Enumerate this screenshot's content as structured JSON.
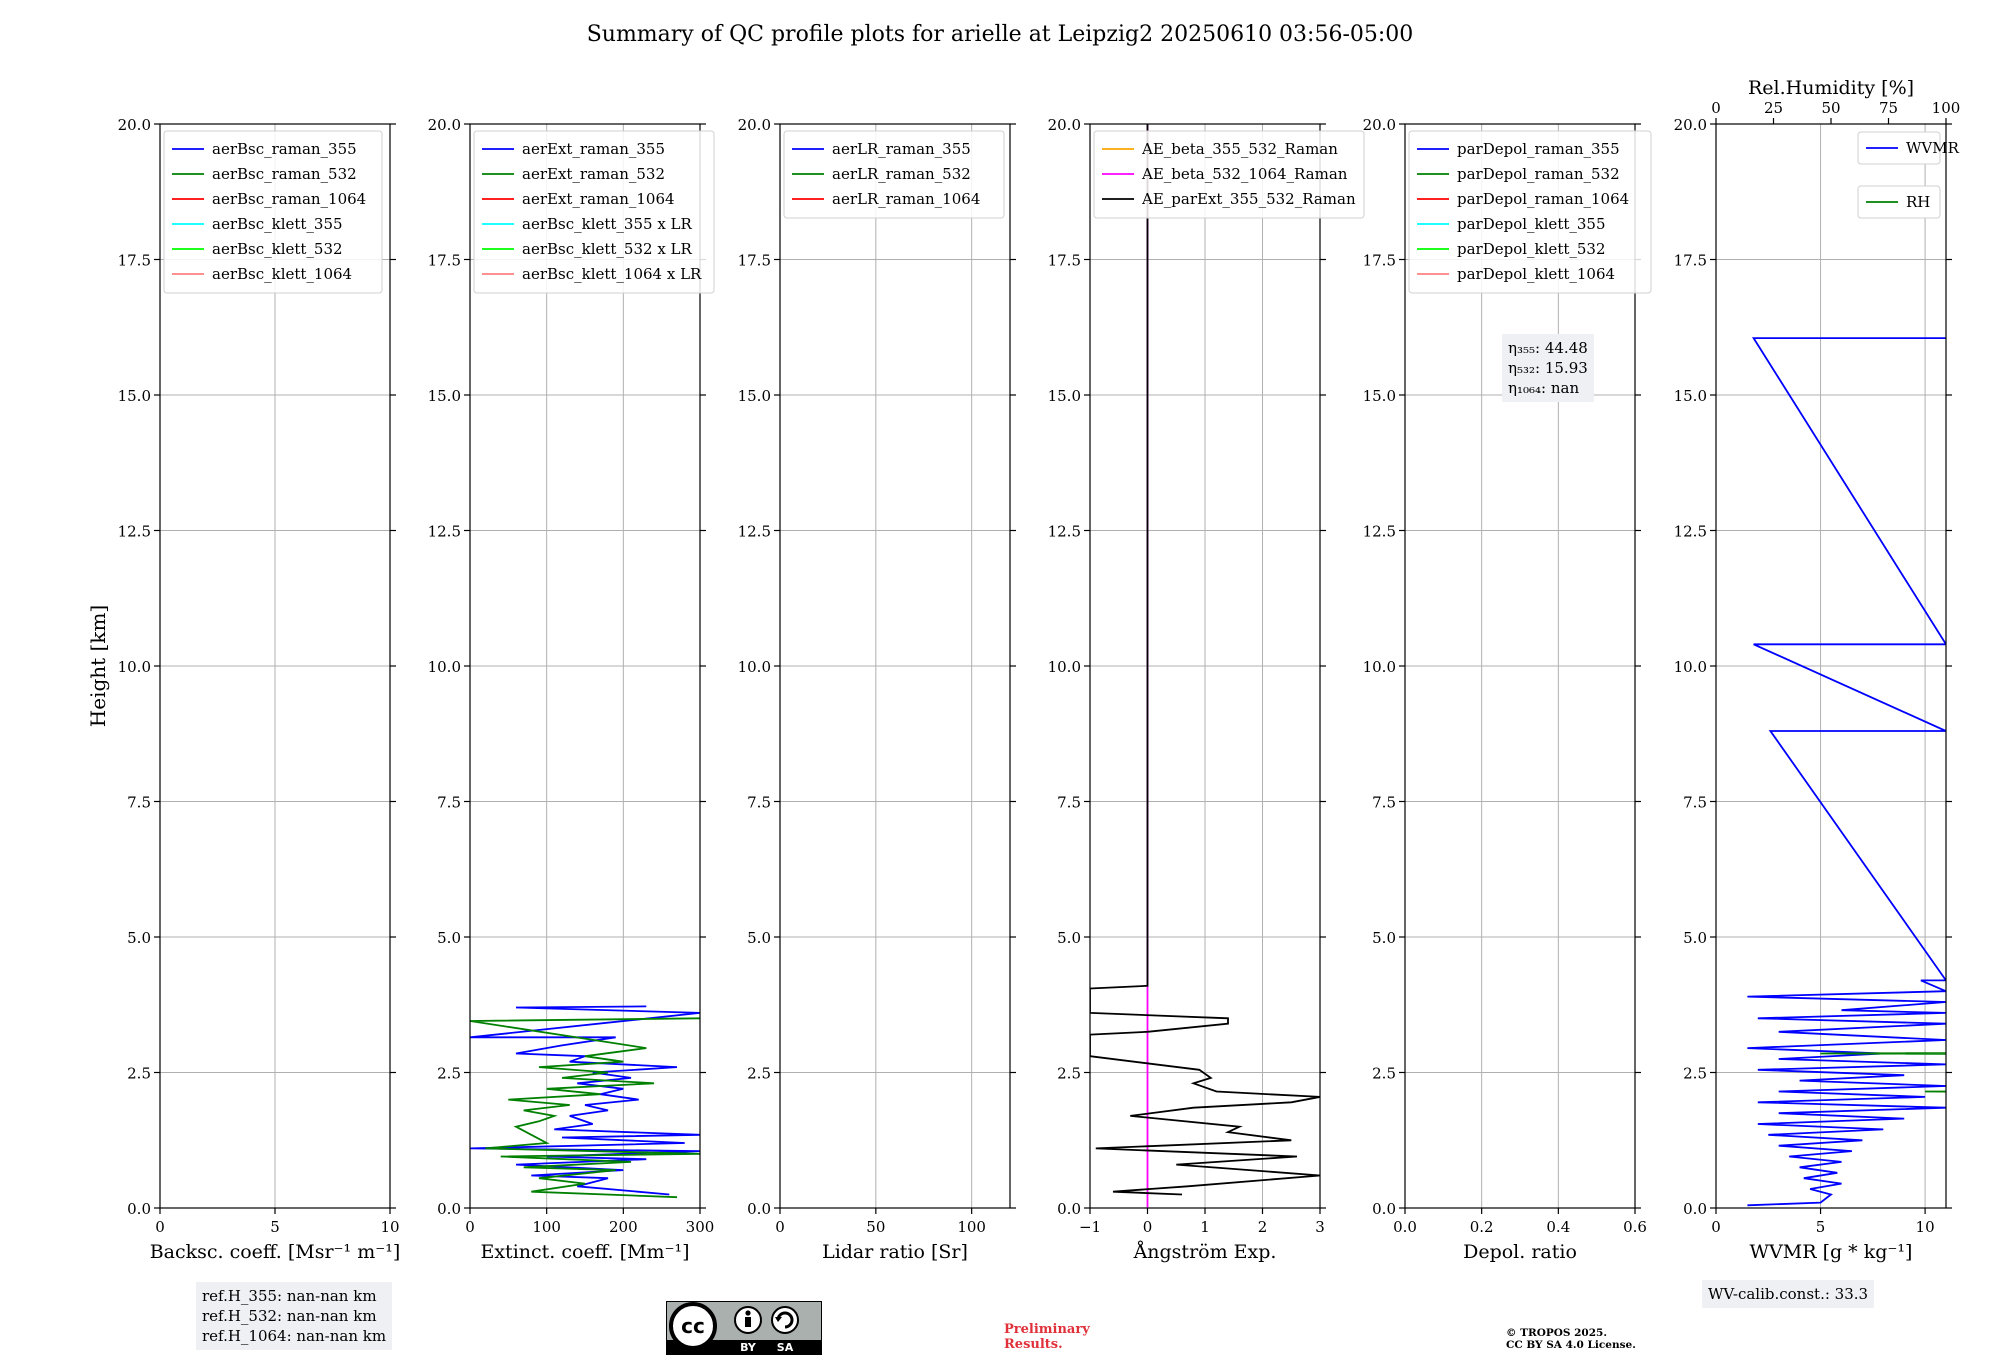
{
  "title": "Summary of QC profile plots for arielle at Leipzig2 20250610 03:56-05:00",
  "y_axis_label": "Height [km]",
  "colors": {
    "blue": "#0000ff",
    "green": "#008000",
    "red": "#ff0000",
    "cyan": "#00ffff",
    "lime": "#00ff00",
    "pink": "#ff8080",
    "orange": "#ffa500",
    "magenta": "#ff00ff",
    "black": "#000000",
    "grid": "#b0b0b0",
    "infobox_bg": "#eef0f3",
    "preliminary": "#e0303a"
  },
  "chart_data": [
    {
      "type": "line",
      "id": "backscatter",
      "xlabel": "Backsc. coeff. [Msr⁻¹ m⁻¹]",
      "xlim": [
        0,
        10
      ],
      "xticks": [
        0,
        5,
        10
      ],
      "xtick_labels": [
        "0",
        "5",
        "10"
      ],
      "ylim": [
        0,
        20
      ],
      "yticks": [
        0,
        2.5,
        5,
        7.5,
        10,
        12.5,
        15,
        17.5,
        20
      ],
      "ytick_labels": [
        "0.0",
        "2.5",
        "5.0",
        "7.5",
        "10.0",
        "12.5",
        "15.0",
        "17.5",
        "20.0"
      ],
      "grid": true,
      "legend_position": "top-left",
      "series": [
        {
          "name": "aerBsc_raman_355",
          "color": "blue",
          "points": []
        },
        {
          "name": "aerBsc_raman_532",
          "color": "green",
          "points": []
        },
        {
          "name": "aerBsc_raman_1064",
          "color": "red",
          "points": []
        },
        {
          "name": "aerBsc_klett_355",
          "color": "cyan",
          "points": []
        },
        {
          "name": "aerBsc_klett_532",
          "color": "lime",
          "points": []
        },
        {
          "name": "aerBsc_klett_1064",
          "color": "pink",
          "points": []
        }
      ]
    },
    {
      "type": "line",
      "id": "extinction",
      "xlabel": "Extinct. coeff. [Mm⁻¹]",
      "xlim": [
        0,
        300
      ],
      "xticks": [
        0,
        100,
        200,
        300
      ],
      "xtick_labels": [
        "0",
        "100",
        "200",
        "300"
      ],
      "ylim": [
        0,
        20
      ],
      "yticks": [
        0,
        2.5,
        5,
        7.5,
        10,
        12.5,
        15,
        17.5,
        20
      ],
      "ytick_labels": [
        "0.0",
        "2.5",
        "5.0",
        "7.5",
        "10.0",
        "12.5",
        "15.0",
        "17.5",
        "20.0"
      ],
      "grid": true,
      "legend_position": "top-left",
      "series": [
        {
          "name": "aerExt_raman_355",
          "color": "blue",
          "points": [
            [
              260,
              0.25
            ],
            [
              140,
              0.4
            ],
            [
              180,
              0.55
            ],
            [
              80,
              0.6
            ],
            [
              200,
              0.7
            ],
            [
              60,
              0.8
            ],
            [
              230,
              0.9
            ],
            [
              100,
              0.95
            ],
            [
              300,
              1.05
            ],
            [
              0,
              1.1
            ],
            [
              280,
              1.2
            ],
            [
              120,
              1.3
            ],
            [
              300,
              1.35
            ],
            [
              110,
              1.45
            ],
            [
              160,
              1.55
            ],
            [
              130,
              1.7
            ],
            [
              180,
              1.8
            ],
            [
              150,
              1.9
            ],
            [
              220,
              2.0
            ],
            [
              170,
              2.1
            ],
            [
              200,
              2.2
            ],
            [
              140,
              2.3
            ],
            [
              210,
              2.4
            ],
            [
              160,
              2.5
            ],
            [
              270,
              2.6
            ],
            [
              130,
              2.7
            ],
            [
              150,
              2.8
            ],
            [
              60,
              2.85
            ],
            [
              120,
              3.0
            ],
            [
              190,
              3.15
            ],
            [
              0,
              3.15
            ],
            [
              300,
              3.6
            ],
            [
              60,
              3.7
            ],
            [
              230,
              3.72
            ]
          ]
        },
        {
          "name": "aerExt_raman_532",
          "color": "green",
          "points": [
            [
              270,
              0.2
            ],
            [
              80,
              0.3
            ],
            [
              150,
              0.45
            ],
            [
              90,
              0.55
            ],
            [
              190,
              0.7
            ],
            [
              70,
              0.75
            ],
            [
              210,
              0.85
            ],
            [
              40,
              0.95
            ],
            [
              300,
              1.0
            ],
            [
              20,
              1.1
            ],
            [
              100,
              1.2
            ],
            [
              80,
              1.35
            ],
            [
              60,
              1.5
            ],
            [
              90,
              1.6
            ],
            [
              110,
              1.7
            ],
            [
              70,
              1.8
            ],
            [
              130,
              1.9
            ],
            [
              50,
              2.0
            ],
            [
              170,
              2.1
            ],
            [
              100,
              2.2
            ],
            [
              240,
              2.3
            ],
            [
              120,
              2.4
            ],
            [
              180,
              2.5
            ],
            [
              90,
              2.6
            ],
            [
              200,
              2.7
            ],
            [
              150,
              2.8
            ],
            [
              230,
              2.95
            ],
            [
              0,
              3.45
            ],
            [
              300,
              3.5
            ]
          ]
        },
        {
          "name": "aerExt_raman_1064",
          "color": "red",
          "points": []
        },
        {
          "name": "aerBsc_klett_355 x LR",
          "color": "cyan",
          "points": []
        },
        {
          "name": "aerBsc_klett_532 x LR",
          "color": "lime",
          "points": []
        },
        {
          "name": "aerBsc_klett_1064 x LR",
          "color": "pink",
          "points": []
        }
      ]
    },
    {
      "type": "line",
      "id": "lidar_ratio",
      "xlabel": "Lidar ratio [Sr]",
      "xlim": [
        0,
        120
      ],
      "xticks": [
        0,
        50,
        100
      ],
      "xtick_labels": [
        "0",
        "50",
        "100"
      ],
      "ylim": [
        0,
        20
      ],
      "yticks": [
        0,
        2.5,
        5,
        7.5,
        10,
        12.5,
        15,
        17.5,
        20
      ],
      "ytick_labels": [
        "0.0",
        "2.5",
        "5.0",
        "7.5",
        "10.0",
        "12.5",
        "15.0",
        "17.5",
        "20.0"
      ],
      "grid": true,
      "legend_position": "top-left",
      "series": [
        {
          "name": "aerLR_raman_355",
          "color": "blue",
          "points": []
        },
        {
          "name": "aerLR_raman_532",
          "color": "green",
          "points": []
        },
        {
          "name": "aerLR_raman_1064",
          "color": "red",
          "points": []
        }
      ]
    },
    {
      "type": "line",
      "id": "angstrom",
      "xlabel": "Ångström Exp.",
      "xlim": [
        -1,
        3
      ],
      "xticks": [
        -1,
        0,
        1,
        2,
        3
      ],
      "xtick_labels": [
        "−1",
        "0",
        "1",
        "2",
        "3"
      ],
      "ylim": [
        0,
        20
      ],
      "yticks": [
        0,
        2.5,
        5,
        7.5,
        10,
        12.5,
        15,
        17.5,
        20
      ],
      "ytick_labels": [
        "0.0",
        "2.5",
        "5.0",
        "7.5",
        "10.0",
        "12.5",
        "15.0",
        "17.5",
        "20.0"
      ],
      "grid": true,
      "legend_position": "top-left",
      "series": [
        {
          "name": "AE_beta_355_532_Raman",
          "color": "orange",
          "points": []
        },
        {
          "name": "AE_beta_532_1064_Raman",
          "color": "magenta",
          "points": [
            [
              0,
              0
            ],
            [
              0,
              20
            ]
          ]
        },
        {
          "name": "AE_parExt_355_532_Raman",
          "color": "black",
          "points": [
            [
              0.6,
              0.25
            ],
            [
              -0.6,
              0.3
            ],
            [
              0.7,
              0.4
            ],
            [
              3.0,
              0.6
            ],
            [
              0.5,
              0.8
            ],
            [
              2.6,
              0.95
            ],
            [
              -0.9,
              1.1
            ],
            [
              2.5,
              1.25
            ],
            [
              1.4,
              1.4
            ],
            [
              1.6,
              1.5
            ],
            [
              -0.3,
              1.7
            ],
            [
              0.8,
              1.85
            ],
            [
              2.5,
              1.95
            ],
            [
              3.0,
              2.05
            ],
            [
              1.2,
              2.15
            ],
            [
              0.8,
              2.3
            ],
            [
              1.1,
              2.4
            ],
            [
              0.9,
              2.55
            ],
            [
              -1.0,
              2.8
            ],
            [
              -1.0,
              3.2
            ],
            [
              0.0,
              3.25
            ],
            [
              1.4,
              3.4
            ],
            [
              1.4,
              3.5
            ],
            [
              -1.0,
              3.6
            ],
            [
              -1.0,
              4.05
            ],
            [
              0.0,
              4.1
            ],
            [
              0.0,
              20
            ]
          ]
        }
      ]
    },
    {
      "type": "line",
      "id": "depol",
      "xlabel": "Depol. ratio",
      "xlim": [
        0,
        0.6
      ],
      "xticks": [
        0,
        0.2,
        0.4,
        0.6
      ],
      "xtick_labels": [
        "0.0",
        "0.2",
        "0.4",
        "0.6"
      ],
      "ylim": [
        0,
        20
      ],
      "yticks": [
        0,
        2.5,
        5,
        7.5,
        10,
        12.5,
        15,
        17.5,
        20
      ],
      "ytick_labels": [
        "0.0",
        "2.5",
        "5.0",
        "7.5",
        "10.0",
        "12.5",
        "15.0",
        "17.5",
        "20.0"
      ],
      "grid": true,
      "legend_position": "top-left",
      "series": [
        {
          "name": "parDepol_raman_355",
          "color": "blue",
          "points": []
        },
        {
          "name": "parDepol_raman_532",
          "color": "green",
          "points": []
        },
        {
          "name": "parDepol_raman_1064",
          "color": "red",
          "points": []
        },
        {
          "name": "parDepol_klett_355",
          "color": "cyan",
          "points": []
        },
        {
          "name": "parDepol_klett_532",
          "color": "lime",
          "points": []
        },
        {
          "name": "parDepol_klett_1064",
          "color": "pink",
          "points": []
        }
      ]
    },
    {
      "type": "line",
      "id": "wvmr",
      "xlabel": "WVMR [g * kg⁻¹]",
      "xlim": [
        0,
        11
      ],
      "xticks": [
        0,
        5,
        10
      ],
      "xtick_labels": [
        "0",
        "5",
        "10"
      ],
      "x2label": "Rel.Humidity [%]",
      "x2lim": [
        0,
        100
      ],
      "x2ticks": [
        0,
        25,
        50,
        75,
        100
      ],
      "x2tick_labels": [
        "0",
        "25",
        "50",
        "75",
        "100"
      ],
      "ylim": [
        0,
        20
      ],
      "yticks": [
        0,
        2.5,
        5,
        7.5,
        10,
        12.5,
        15,
        17.5,
        20
      ],
      "ytick_labels": [
        "0.0",
        "2.5",
        "5.0",
        "7.5",
        "10.0",
        "12.5",
        "15.0",
        "17.5",
        "20.0"
      ],
      "grid": true,
      "legend_position": "top-right",
      "series": [
        {
          "name": "WVMR",
          "color": "blue",
          "points": [
            [
              1.5,
              0.05
            ],
            [
              5,
              0.1
            ],
            [
              5.5,
              0.25
            ],
            [
              4.5,
              0.35
            ],
            [
              6,
              0.45
            ],
            [
              4.2,
              0.55
            ],
            [
              5.8,
              0.65
            ],
            [
              4,
              0.75
            ],
            [
              6,
              0.85
            ],
            [
              3.5,
              0.95
            ],
            [
              6.5,
              1.05
            ],
            [
              3,
              1.15
            ],
            [
              7,
              1.25
            ],
            [
              2.5,
              1.35
            ],
            [
              8,
              1.45
            ],
            [
              2,
              1.55
            ],
            [
              9,
              1.65
            ],
            [
              3,
              1.75
            ],
            [
              11,
              1.85
            ],
            [
              2,
              1.95
            ],
            [
              10,
              2.05
            ],
            [
              3,
              2.15
            ],
            [
              11,
              2.25
            ],
            [
              4,
              2.35
            ],
            [
              9,
              2.45
            ],
            [
              2,
              2.55
            ],
            [
              11,
              2.65
            ],
            [
              3,
              2.75
            ],
            [
              8,
              2.85
            ],
            [
              1.5,
              2.95
            ],
            [
              11,
              3.1
            ],
            [
              3,
              3.25
            ],
            [
              11,
              3.4
            ],
            [
              2,
              3.5
            ],
            [
              11,
              3.6
            ],
            [
              6,
              3.65
            ],
            [
              11,
              3.8
            ],
            [
              1.5,
              3.9
            ],
            [
              11,
              4.0
            ],
            [
              9.8,
              4.2
            ],
            [
              11,
              4.2
            ],
            [
              2.6,
              8.8
            ],
            [
              11,
              8.8
            ],
            [
              1.8,
              10.4
            ],
            [
              11,
              10.4
            ],
            [
              1.8,
              16.05
            ],
            [
              11,
              16.05
            ]
          ]
        },
        {
          "name": "RH",
          "color": "green",
          "points": [
            [
              30,
              0.15
            ],
            [
              70,
              0.25
            ],
            [
              40,
              0.35
            ],
            [
              85,
              0.45
            ],
            [
              35,
              0.55
            ],
            [
              90,
              0.65
            ],
            [
              30,
              0.75
            ],
            [
              95,
              0.85
            ],
            [
              25,
              0.95
            ],
            [
              100,
              1.05
            ],
            [
              20,
              1.15
            ],
            [
              100,
              1.25
            ],
            [
              30,
              1.35
            ],
            [
              100,
              1.45
            ],
            [
              15,
              1.55
            ],
            [
              100,
              1.65
            ],
            [
              20,
              1.75
            ],
            [
              100,
              1.85
            ],
            [
              25,
              1.95
            ],
            [
              100,
              2.05
            ],
            [
              10,
              2.15
            ],
            [
              100,
              2.25
            ],
            [
              20,
              2.35
            ],
            [
              100,
              2.45
            ],
            [
              30,
              2.6
            ],
            [
              100,
              2.75
            ],
            [
              5,
              2.85
            ],
            [
              100,
              3.0
            ],
            [
              40,
              3.1
            ],
            [
              100,
              3.25
            ],
            [
              30,
              3.45
            ],
            [
              100,
              3.6
            ],
            [
              60,
              3.7
            ],
            [
              100,
              3.8
            ]
          ]
        }
      ]
    }
  ],
  "annotations": {
    "eta": [
      "η₃₅₅: 44.48",
      "η₅₃₂: 15.93",
      "η₁₀₆₄: nan"
    ],
    "refh": [
      "ref.H_355: nan-nan km",
      "ref.H_532: nan-nan km",
      "ref.H_1064: nan-nan km"
    ],
    "wv_calib": "WV-calib.const.: 33.3",
    "preliminary": [
      "Preliminary",
      "Results."
    ],
    "copyright": [
      "© TROPOS 2025.",
      "CC BY SA 4.0 License."
    ],
    "license_badge": [
      "cc",
      "BY",
      "SA"
    ]
  }
}
